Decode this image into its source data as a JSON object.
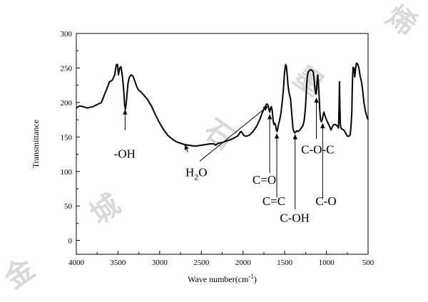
{
  "chart_data": {
    "type": "line",
    "xlabel_main": "Wave number(cm",
    "xlabel_sup": "-1",
    "xlabel_close": ")",
    "ylabel": "Transmittance",
    "xlim": [
      4000,
      500
    ],
    "ylim": [
      -20,
      300
    ],
    "x_ticks": [
      4000,
      3500,
      3000,
      2500,
      2000,
      1500,
      1000,
      500
    ],
    "y_ticks": [
      0,
      50,
      100,
      150,
      200,
      250,
      300
    ],
    "series": [
      {
        "points": [
          [
            4000,
            192
          ],
          [
            3960,
            195
          ],
          [
            3920,
            194
          ],
          [
            3870,
            192
          ],
          [
            3800,
            194
          ],
          [
            3700,
            200
          ],
          [
            3650,
            215
          ],
          [
            3600,
            230
          ],
          [
            3570,
            232
          ],
          [
            3540,
            240
          ],
          [
            3520,
            255
          ],
          [
            3505,
            255
          ],
          [
            3495,
            240
          ],
          [
            3480,
            250
          ],
          [
            3465,
            252
          ],
          [
            3450,
            240
          ],
          [
            3440,
            230
          ],
          [
            3430,
            215
          ],
          [
            3420,
            195
          ],
          [
            3410,
            190
          ],
          [
            3400,
            200
          ],
          [
            3390,
            215
          ],
          [
            3380,
            228
          ],
          [
            3365,
            236
          ],
          [
            3345,
            240
          ],
          [
            3320,
            238
          ],
          [
            3295,
            230
          ],
          [
            3275,
            223
          ],
          [
            3255,
            218
          ],
          [
            3230,
            216
          ],
          [
            3200,
            212
          ],
          [
            3150,
            205
          ],
          [
            3100,
            195
          ],
          [
            3050,
            182
          ],
          [
            3000,
            170
          ],
          [
            2950,
            160
          ],
          [
            2900,
            152
          ],
          [
            2850,
            147
          ],
          [
            2800,
            143
          ],
          [
            2750,
            141
          ],
          [
            2700,
            139
          ],
          [
            2650,
            138
          ],
          [
            2600,
            137
          ],
          [
            2550,
            137
          ],
          [
            2500,
            138
          ],
          [
            2450,
            139
          ],
          [
            2400,
            140
          ],
          [
            2350,
            140
          ],
          [
            2330,
            138
          ],
          [
            2320,
            139
          ],
          [
            2300,
            141
          ],
          [
            2250,
            142
          ],
          [
            2200,
            144
          ],
          [
            2150,
            146
          ],
          [
            2100,
            149
          ],
          [
            2060,
            152
          ],
          [
            2040,
            156
          ],
          [
            2025,
            158
          ],
          [
            2010,
            156
          ],
          [
            1990,
            152
          ],
          [
            1960,
            151
          ],
          [
            1920,
            153
          ],
          [
            1880,
            158
          ],
          [
            1840,
            165
          ],
          [
            1800,
            175
          ],
          [
            1770,
            185
          ],
          [
            1740,
            193
          ],
          [
            1715,
            198
          ],
          [
            1700,
            196
          ],
          [
            1690,
            190
          ],
          [
            1680,
            186
          ],
          [
            1670,
            192
          ],
          [
            1660,
            194
          ],
          [
            1650,
            188
          ],
          [
            1640,
            175
          ],
          [
            1630,
            168
          ],
          [
            1620,
            170
          ],
          [
            1610,
            167
          ],
          [
            1600,
            160
          ],
          [
            1590,
            158
          ],
          [
            1575,
            168
          ],
          [
            1560,
            175
          ],
          [
            1545,
            185
          ],
          [
            1530,
            200
          ],
          [
            1515,
            220
          ],
          [
            1505,
            240
          ],
          [
            1495,
            250
          ],
          [
            1488,
            255
          ],
          [
            1480,
            252
          ],
          [
            1470,
            240
          ],
          [
            1460,
            225
          ],
          [
            1450,
            215
          ],
          [
            1440,
            210
          ],
          [
            1430,
            205
          ],
          [
            1420,
            190
          ],
          [
            1410,
            175
          ],
          [
            1400,
            162
          ],
          [
            1390,
            158
          ],
          [
            1380,
            156
          ],
          [
            1370,
            157
          ],
          [
            1355,
            159
          ],
          [
            1340,
            158
          ],
          [
            1320,
            160
          ],
          [
            1300,
            163
          ],
          [
            1280,
            167
          ],
          [
            1265,
            175
          ],
          [
            1250,
            195
          ],
          [
            1240,
            218
          ],
          [
            1230,
            236
          ],
          [
            1220,
            244
          ],
          [
            1200,
            247
          ],
          [
            1180,
            247
          ],
          [
            1160,
            245
          ],
          [
            1150,
            238
          ],
          [
            1140,
            224
          ],
          [
            1130,
            212
          ],
          [
            1120,
            213
          ],
          [
            1112,
            230
          ],
          [
            1105,
            240
          ],
          [
            1100,
            237
          ],
          [
            1090,
            215
          ],
          [
            1080,
            190
          ],
          [
            1070,
            175
          ],
          [
            1060,
            172
          ],
          [
            1050,
            175
          ],
          [
            1040,
            181
          ],
          [
            1030,
            186
          ],
          [
            1015,
            180
          ],
          [
            1000,
            175
          ],
          [
            980,
            170
          ],
          [
            960,
            165
          ],
          [
            945,
            160
          ],
          [
            930,
            165
          ],
          [
            910,
            168
          ],
          [
            890,
            168
          ],
          [
            870,
            166
          ],
          [
            855,
            163
          ],
          [
            848,
            190
          ],
          [
            843,
            230
          ],
          [
            838,
            195
          ],
          [
            833,
            168
          ],
          [
            825,
            163
          ],
          [
            810,
            161
          ],
          [
            790,
            160
          ],
          [
            770,
            156
          ],
          [
            750,
            151
          ],
          [
            730,
            151
          ],
          [
            715,
            153
          ],
          [
            705,
            165
          ],
          [
            695,
            185
          ],
          [
            690,
            218
          ],
          [
            685,
            240
          ],
          [
            680,
            251
          ],
          [
            670,
            250
          ],
          [
            660,
            237
          ],
          [
            650,
            249
          ],
          [
            640,
            257
          ],
          [
            625,
            256
          ],
          [
            610,
            250
          ],
          [
            595,
            238
          ],
          [
            580,
            230
          ],
          [
            565,
            218
          ],
          [
            550,
            200
          ],
          [
            530,
            186
          ],
          [
            510,
            178
          ],
          [
            500,
            175
          ]
        ]
      }
    ],
    "annotations": [
      {
        "text": "-OH",
        "tip": [
          3415,
          190
        ],
        "tail": [
          3415,
          160
        ],
        "label_at": [
          3420,
          120
        ],
        "kind": "plain"
      },
      {
        "text": "H2O",
        "text_main": "H",
        "text_sub": "2",
        "text_end": "O",
        "tip": [
          2700,
          139
        ],
        "tail": [
          2660,
          128
        ],
        "label_at": [
          2560,
          93
        ],
        "kind": "h2o"
      },
      {
        "text": "H2O-arrow2",
        "tip": [
          1700,
          195
        ],
        "tail": [
          2520,
          115
        ],
        "label_at": null,
        "kind": "arrow-only"
      },
      {
        "text": "C=O",
        "tip": [
          1680,
          183
        ],
        "tail": [
          1680,
          98
        ],
        "label_at": [
          1745,
          82
        ],
        "kind": "plain"
      },
      {
        "text": "C=C",
        "tip": [
          1595,
          155
        ],
        "tail": [
          1595,
          62
        ],
        "label_at": [
          1630,
          51
        ],
        "kind": "plain"
      },
      {
        "text": "C-OH",
        "tip": [
          1375,
          154
        ],
        "tail": [
          1375,
          45
        ],
        "label_at": [
          1380,
          27
        ],
        "kind": "plain"
      },
      {
        "text": "C-O-C",
        "tip": [
          1120,
          207
        ],
        "tail": [
          1120,
          147
        ],
        "label_at": [
          1105,
          126
        ],
        "kind": "plain"
      },
      {
        "text": "C-O",
        "tip": [
          1045,
          170
        ],
        "tail": [
          1045,
          60
        ],
        "label_at": [
          1005,
          51
        ],
        "kind": "plain"
      }
    ],
    "grid": false,
    "legend": "none"
  },
  "watermark": {
    "chars": [
      "烯",
      "墨",
      "石",
      "城",
      "金"
    ],
    "color": "#d9d9d9"
  },
  "colors": {
    "line": "#000000",
    "axis": "#000000",
    "background": "#ffffff"
  }
}
